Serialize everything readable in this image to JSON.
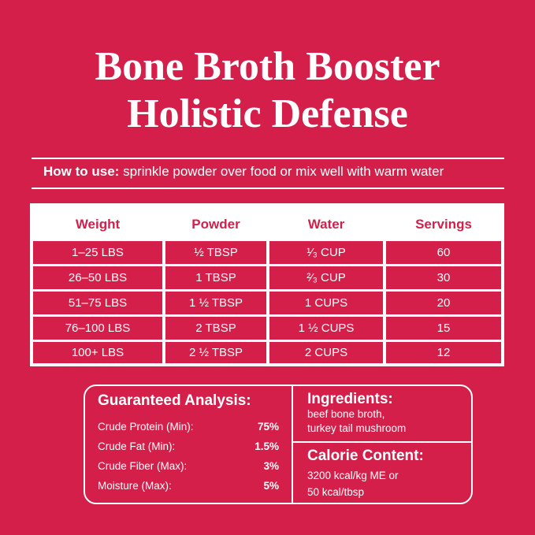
{
  "header": {
    "title_line1": "Bone Broth Booster",
    "title_line2": "Holistic Defense"
  },
  "how_to_use": {
    "label": "How to use:",
    "text": "sprinkle powder over food or mix well with warm water"
  },
  "table": {
    "columns": [
      "Weight",
      "Powder",
      "Water",
      "Servings"
    ],
    "rows": [
      [
        "1–25 LBS",
        "½ TBSP",
        "¹⁄₃ CUP",
        60
      ],
      [
        "26–50 LBS",
        "1 TBSP",
        "²⁄₃ CUP",
        30
      ],
      [
        "51–75 LBS",
        "1 ½ TBSP",
        "1 CUPS",
        20
      ],
      [
        "76–100 LBS",
        "2 TBSP",
        "1 ½ CUPS",
        15
      ],
      [
        "100+ LBS",
        "2 ½ TBSP",
        "2 CUPS",
        12
      ]
    ]
  },
  "analysis": {
    "title": "Guaranteed Analysis:",
    "items": [
      {
        "label": "Crude Protein (Min):",
        "value": "75%"
      },
      {
        "label": "Crude Fat (Min):",
        "value": "1.5%"
      },
      {
        "label": "Crude Fiber (Max):",
        "value": "3%"
      },
      {
        "label": "Moisture (Max):",
        "value": "5%"
      }
    ]
  },
  "ingredients": {
    "title": "Ingredients:",
    "lines": [
      "beef bone broth,",
      "turkey tail mushroom"
    ]
  },
  "calorie": {
    "title": "Calorie Content:",
    "lines": [
      "3200 kcal/kg ME or",
      "50 kcal/tbsp"
    ]
  }
}
